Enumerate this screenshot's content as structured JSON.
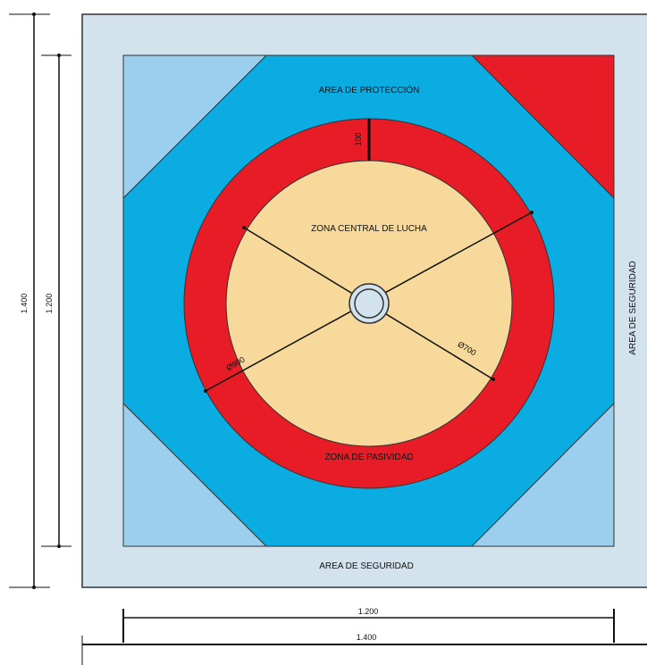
{
  "colors": {
    "outer_area": "#d3e3ee",
    "protection_area": "#0aace2",
    "corner_light": "#9ccfee",
    "passivity_zone": "#e81c26",
    "central_zone": "#f6d99b",
    "lines": "#111111",
    "dimension_lines": "#111111"
  },
  "labels": {
    "protection_area": "AREA DE PROTECCIÓN",
    "central_zone": "ZONA CENTRAL DE LUCHA",
    "passivity_zone": "ZONA DE PASIVIDAD",
    "safety_area_bottom": "AREA DE SEGURIDAD",
    "safety_area_right": "AREA DE SEGURIDAD"
  },
  "dimensions": {
    "ring_width": "100",
    "diameter_outer": "Ø900",
    "diameter_inner": "Ø700",
    "outer_height": "1.400",
    "inner_height": "1.200",
    "inner_width": "1.200",
    "outer_width": "1.400"
  }
}
